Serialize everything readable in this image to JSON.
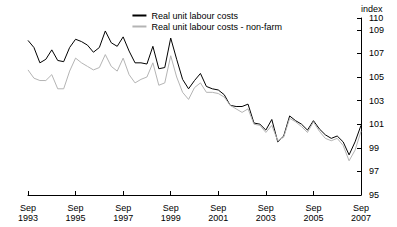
{
  "chart_data": {
    "type": "line",
    "y_label": "index",
    "categories": [
      "Sep\n1993",
      null,
      null,
      null,
      null,
      null,
      null,
      null,
      "Sep\n1995",
      null,
      null,
      null,
      null,
      null,
      null,
      null,
      "Sep\n1997",
      null,
      null,
      null,
      null,
      null,
      null,
      null,
      "Sep\n1999",
      null,
      null,
      null,
      null,
      null,
      null,
      null,
      "Sep\n2001",
      null,
      null,
      null,
      null,
      null,
      null,
      null,
      "Sep\n2003",
      null,
      null,
      null,
      null,
      null,
      null,
      null,
      "Sep\n2005",
      null,
      null,
      null,
      null,
      null,
      null,
      null,
      "Sep\n2007"
    ],
    "series": [
      {
        "name": "Real unit labour costs",
        "color": "#000000",
        "values": [
          108.1,
          107.5,
          106.2,
          106.5,
          107.3,
          106.4,
          106.3,
          107.5,
          108.2,
          108.0,
          107.7,
          107.1,
          107.5,
          108.9,
          107.9,
          107.6,
          108.4,
          107.2,
          106.2,
          106.2,
          106.1,
          107.6,
          105.7,
          105.8,
          108.3,
          106.5,
          104.8,
          104.0,
          104.7,
          105.3,
          104.2,
          104.0,
          103.9,
          103.5,
          102.6,
          102.5,
          102.5,
          102.7,
          101.1,
          101.0,
          100.5,
          101.4,
          99.5,
          100.0,
          101.7,
          101.3,
          101.0,
          100.5,
          101.3,
          100.6,
          100.1,
          99.8,
          100.0,
          99.5,
          98.4,
          99.5,
          100.9
        ]
      },
      {
        "name": "Real unit labour costs - non-farm",
        "color": "#b4b4b4",
        "values": [
          105.6,
          104.9,
          104.7,
          104.7,
          105.2,
          104.0,
          104.0,
          105.5,
          106.6,
          106.2,
          105.9,
          105.6,
          105.8,
          106.9,
          105.9,
          105.5,
          106.6,
          105.2,
          104.5,
          104.8,
          105.0,
          106.2,
          104.3,
          104.5,
          106.8,
          105.0,
          103.7,
          103.1,
          104.1,
          104.5,
          103.7,
          103.7,
          103.6,
          103.3,
          102.6,
          102.3,
          102.0,
          102.3,
          101.0,
          100.9,
          100.3,
          100.9,
          99.6,
          99.9,
          101.5,
          101.2,
          100.8,
          100.3,
          101.2,
          100.4,
          99.8,
          99.6,
          99.8,
          99.2,
          97.9,
          98.8,
          100.4
        ]
      }
    ],
    "ylim": [
      95,
      110
    ],
    "yticks": [
      95,
      97,
      99,
      101,
      103,
      105,
      107,
      109,
      110
    ],
    "grid": false,
    "legend": "upper right"
  }
}
